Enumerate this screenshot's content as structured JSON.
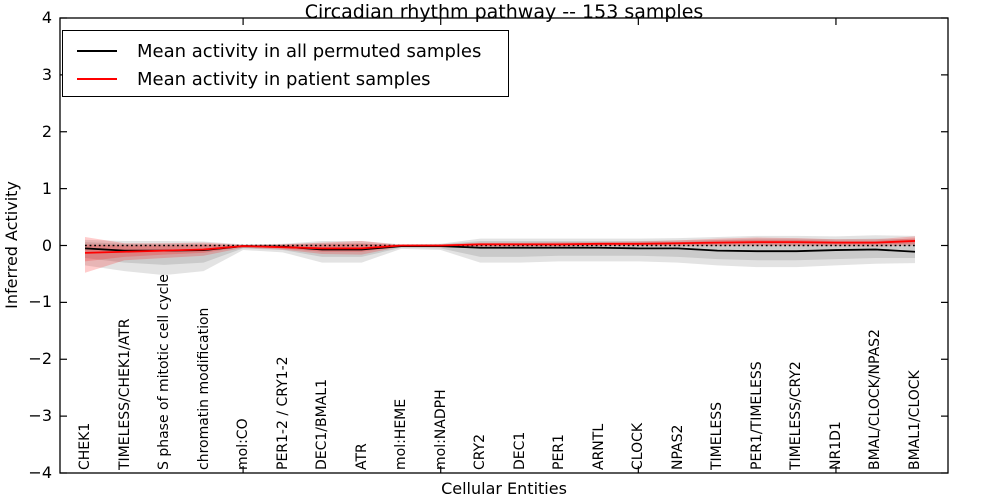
{
  "chart_data": {
    "type": "line",
    "title": "Circadian rhythm pathway -- 153 samples",
    "xlabel": "Cellular Entities",
    "ylabel": "Inferred Activity",
    "ylim": [
      -4,
      4
    ],
    "yticks": [
      4,
      3,
      2,
      1,
      0,
      -1,
      -2,
      -3,
      -4
    ],
    "ytick_labels": [
      "4",
      "3",
      "2",
      "1",
      "0",
      "−1",
      "−2",
      "−3",
      "−4"
    ],
    "xticks": [
      5,
      10,
      15,
      20
    ],
    "grid": false,
    "legend_position": "upper left",
    "categories": [
      "CHEK1",
      "TIMELESS/CHEK1/ATR",
      "S phase of mitotic cell cycle",
      "chromatin modification",
      "mol:CO",
      "PER1-2 / CRY1-2",
      "DEC1/BMAL1",
      "ATR",
      "mol:HEME",
      "mol:NADPH",
      "CRY2",
      "DEC1",
      "PER1",
      "ARNTL",
      "CLOCK",
      "NPAS2",
      "TIMELESS",
      "PER1/TIMELESS",
      "TIMELESS/CRY2",
      "NR1D1",
      "BMAL/CLOCK/NPAS2",
      "BMAL1/CLOCK"
    ],
    "reference_line": {
      "y": 0,
      "style": "dotted",
      "color": "#000000"
    },
    "series": [
      {
        "name": "Mean activity in all permuted samples",
        "color": "#000000",
        "band_color": "#000000",
        "band_opacity": 0.11,
        "values": [
          -0.05,
          -0.09,
          -0.09,
          -0.08,
          -0.01,
          -0.02,
          -0.07,
          -0.07,
          -0.01,
          -0.01,
          -0.04,
          -0.04,
          -0.04,
          -0.04,
          -0.05,
          -0.05,
          -0.09,
          -0.1,
          -0.1,
          -0.08,
          -0.07,
          -0.11
        ],
        "band_outer_upper": [
          0.1,
          0.08,
          0.08,
          0.07,
          0.02,
          0.03,
          0.08,
          0.08,
          0.02,
          0.03,
          0.12,
          0.12,
          0.12,
          0.12,
          0.12,
          0.13,
          0.15,
          0.17,
          0.17,
          0.16,
          0.18,
          0.17
        ],
        "band_outer_lower": [
          -0.35,
          -0.45,
          -0.52,
          -0.45,
          -0.08,
          -0.12,
          -0.3,
          -0.3,
          -0.06,
          -0.08,
          -0.3,
          -0.3,
          -0.28,
          -0.28,
          -0.28,
          -0.3,
          -0.35,
          -0.38,
          -0.38,
          -0.35,
          -0.32,
          -0.31
        ],
        "band_inner_upper": [
          0.06,
          0.03,
          0.03,
          0.03,
          0.01,
          0.02,
          0.04,
          0.04,
          0.01,
          0.02,
          0.08,
          0.08,
          0.08,
          0.08,
          0.08,
          0.09,
          0.1,
          0.12,
          0.12,
          0.11,
          0.12,
          0.11
        ],
        "band_inner_lower": [
          -0.22,
          -0.3,
          -0.34,
          -0.3,
          -0.05,
          -0.08,
          -0.2,
          -0.2,
          -0.04,
          -0.05,
          -0.2,
          -0.2,
          -0.18,
          -0.18,
          -0.18,
          -0.2,
          -0.24,
          -0.26,
          -0.26,
          -0.24,
          -0.22,
          -0.22
        ]
      },
      {
        "name": "Mean activity in patient samples",
        "color": "#ff0000",
        "band_color": "#ff0000",
        "band_opacity": 0.2,
        "values": [
          -0.13,
          -0.11,
          -0.09,
          -0.07,
          -0.01,
          -0.03,
          -0.05,
          -0.05,
          0.0,
          0.0,
          0.02,
          0.02,
          0.02,
          0.03,
          0.03,
          0.04,
          0.05,
          0.06,
          0.06,
          0.05,
          0.05,
          0.08
        ],
        "band_outer_upper": [
          0.15,
          0.04,
          0.04,
          0.05,
          0.01,
          0.02,
          0.05,
          0.08,
          0.01,
          0.02,
          0.05,
          0.05,
          0.06,
          0.06,
          0.07,
          0.09,
          0.12,
          0.14,
          0.13,
          0.11,
          0.11,
          0.16
        ],
        "band_outer_lower": [
          -0.48,
          -0.26,
          -0.22,
          -0.18,
          -0.04,
          -0.07,
          -0.15,
          -0.16,
          -0.02,
          -0.03,
          -0.02,
          -0.02,
          -0.02,
          -0.01,
          -0.01,
          -0.01,
          -0.01,
          -0.01,
          -0.01,
          -0.01,
          -0.02,
          0.0
        ],
        "band_inner_upper": [
          0.02,
          0.0,
          0.0,
          0.01,
          0.0,
          0.01,
          0.02,
          0.03,
          0.01,
          0.01,
          0.04,
          0.04,
          0.04,
          0.04,
          0.05,
          0.06,
          0.09,
          0.1,
          0.1,
          0.08,
          0.08,
          0.13
        ],
        "band_inner_lower": [
          -0.28,
          -0.2,
          -0.16,
          -0.13,
          -0.02,
          -0.05,
          -0.11,
          -0.11,
          -0.01,
          -0.02,
          0.0,
          0.0,
          0.0,
          0.0,
          0.01,
          0.01,
          0.02,
          0.02,
          0.02,
          0.02,
          0.02,
          0.03
        ]
      }
    ]
  }
}
